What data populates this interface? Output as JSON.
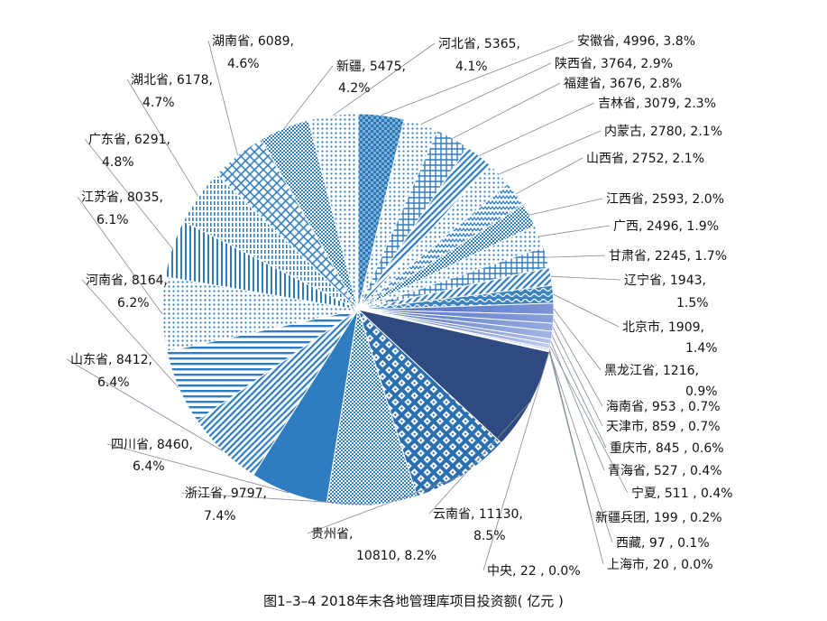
{
  "chart_data": {
    "type": "pie",
    "title": "图1–3–4  2018年末各地管理库项目投资额( 亿元 )",
    "start_angle_deg": 0,
    "direction": "clockwise",
    "slices": [
      {
        "name": "安徽省",
        "value": 4996,
        "label": "安徽省, 4996, 3.8%",
        "pattern": "dense-check",
        "color": "#2777b5"
      },
      {
        "name": "陕西省",
        "value": 3764,
        "label": "陕西省, 3764, 2.9%",
        "pattern": "dots",
        "color": "#3d86bf"
      },
      {
        "name": "福建省",
        "value": 3676,
        "label": "福建省, 3676, 2.8%",
        "pattern": "grid",
        "color": "#2f7ab8"
      },
      {
        "name": "吉林省",
        "value": 3079,
        "label": "吉林省, 3079, 2.3%",
        "pattern": "diag",
        "color": "#3b82bd"
      },
      {
        "name": "内蒙古",
        "value": 2780,
        "label": "内蒙古, 2780, 2.1%",
        "pattern": "dots",
        "color": "#3d86bf"
      },
      {
        "name": "山西省",
        "value": 2752,
        "label": "山西省, 2752, 2.1%",
        "pattern": "zigzag",
        "color": "#3581bd"
      },
      {
        "name": "江西省",
        "value": 2593,
        "label": "江西省, 2593, 2.0%",
        "pattern": "small-check",
        "color": "#3b84c0"
      },
      {
        "name": "广西",
        "value": 2496,
        "label": "广西, 2496, 1.9%",
        "pattern": "dots",
        "color": "#4a8ec5"
      },
      {
        "name": "甘肃省",
        "value": 2245,
        "label": "甘肃省, 2245, 1.7%",
        "pattern": "grid",
        "color": "#3a83c0"
      },
      {
        "name": "辽宁省",
        "value": 1943,
        "label": "辽宁省, 1943,",
        "label2": "1.5%",
        "pattern": "diag",
        "color": "#3a83c0"
      },
      {
        "name": "北京市",
        "value": 1909,
        "label": "北京市, 1909,",
        "label2": "1.4%",
        "pattern": "wave",
        "color": "#3b84c0"
      },
      {
        "name": "黑龙江省",
        "value": 1216,
        "label": "黑龙江省, 1216,",
        "label2": "0.9%",
        "pattern": "gradient",
        "color": "#7b94d6"
      },
      {
        "name": "海南省",
        "value": 953,
        "label": "海南省, 953 , 0.7%",
        "pattern": "gradient",
        "color": "#8aa0da"
      },
      {
        "name": "天津市",
        "value": 859,
        "label": "天津市, 859 , 0.7%",
        "pattern": "gradient",
        "color": "#97abdf"
      },
      {
        "name": "重庆市",
        "value": 845,
        "label": "重庆市, 845 , 0.6%",
        "pattern": "gradient",
        "color": "#a5b6e4"
      },
      {
        "name": "青海省",
        "value": 527,
        "label": "青海省, 527 , 0.4%",
        "pattern": "gradient",
        "color": "#b3c1e8"
      },
      {
        "name": "宁夏",
        "value": 511,
        "label": "宁夏, 511 , 0.4%",
        "pattern": "gradient",
        "color": "#c0cbec"
      },
      {
        "name": "新疆兵团",
        "value": 199,
        "label": "新疆兵团, 199 , 0.2%",
        "pattern": "gradient",
        "color": "#c6d0ee"
      },
      {
        "name": "西藏",
        "value": 97,
        "label": "西藏, 97 , 0.1%",
        "pattern": "gradient",
        "color": "#ccd5f0"
      },
      {
        "name": "上海市",
        "value": 20,
        "label": "上海市, 20 , 0.0%",
        "pattern": "gradient",
        "color": "#d2daf2"
      },
      {
        "name": "中央",
        "value": 22,
        "label": "中央, 22 , 0.0%",
        "pattern": "gradient",
        "color": "#d6ddf3"
      },
      {
        "name": "云南省",
        "value": 11130,
        "label": "云南省, 11130,",
        "label2": "8.5%",
        "pattern": "solid",
        "color": "#2f4a80"
      },
      {
        "name": "贵州省",
        "value": 10810,
        "label": "贵州省,",
        "label2": "10810, 8.2%",
        "pattern": "diamond",
        "color": "#2a6fb0"
      },
      {
        "name": "浙江省",
        "value": 9797,
        "label": "浙江省, 9797,",
        "label2": "7.4%",
        "pattern": "small-check",
        "color": "#4a8fc6"
      },
      {
        "name": "四川省",
        "value": 8460,
        "label": "四川省, 8460,",
        "label2": "6.4%",
        "pattern": "solid",
        "color": "#2f7cc0"
      },
      {
        "name": "山东省",
        "value": 8412,
        "label": "山东省, 8412,",
        "label2": "6.4%",
        "pattern": "diag",
        "color": "#2f7cc0"
      },
      {
        "name": "河南省",
        "value": 8164,
        "label": "河南省, 8164,",
        "label2": "6.2%",
        "pattern": "hlines",
        "color": "#2f7cc0"
      },
      {
        "name": "江苏省",
        "value": 8035,
        "label": "江苏省, 8035,",
        "label2": "6.1%",
        "pattern": "dots",
        "color": "#2a74b6"
      },
      {
        "name": "广东省",
        "value": 6291,
        "label": "广东省, 6291,",
        "label2": "4.8%",
        "pattern": "vlines",
        "color": "#2f7cc0"
      },
      {
        "name": "湖北省",
        "value": 6178,
        "label": "湖北省, 6178,",
        "label2": "4.7%",
        "pattern": "dashes",
        "color": "#3b84c0"
      },
      {
        "name": "湖南省",
        "value": 6089,
        "label": "湖南省, 6089,",
        "label2": "4.6%",
        "pattern": "diag-grid",
        "color": "#3b84c0"
      },
      {
        "name": "新疆",
        "value": 5475,
        "label": "新疆, 5475,",
        "label2": "4.2%",
        "pattern": "small-check",
        "color": "#3b84c0"
      },
      {
        "name": "河北省",
        "value": 5365,
        "label": "河北省, 5365,",
        "label2": "4.1%",
        "pattern": "dots",
        "color": "#4a8fc6"
      }
    ]
  }
}
